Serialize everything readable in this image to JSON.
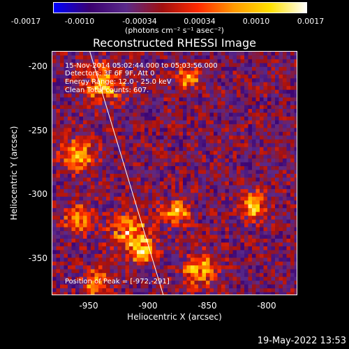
{
  "chart_data": {
    "type": "heatmap",
    "title": "Reconstructed RHESSI Image",
    "xlabel": "Heliocentric X (arcsec)",
    "ylabel": "Heliocentric Y (arcsec)",
    "xlim": [
      -975,
      -785
    ],
    "ylim": [
      -380,
      -190
    ],
    "xticks": [
      "-950",
      "-900",
      "-850",
      "-800"
    ],
    "yticks": [
      "-200",
      "-250",
      "-300",
      "-350"
    ],
    "colorbar": {
      "range": [
        -0.0017,
        0.0017
      ],
      "ticks": [
        "-0.0017",
        "-0.0010",
        "-0.00034",
        "0.00034",
        "0.0010",
        "0.0017"
      ],
      "units": "(photons cm⁻² s⁻¹ asec⁻²)",
      "colors": [
        "#0000ff",
        "#3a0070",
        "#5a2a8a",
        "#a01010",
        "#ff2a00",
        "#ff9a00",
        "#ffe000",
        "#ffffff"
      ]
    },
    "annotations": {
      "time_range": "15-Nov-2014 05:02:44.000 to 05:03:56.000",
      "detectors": "Detectors: 3F 6F 9F, Att 0",
      "energy": "Energy Range: 12.0 - 25.0 keV",
      "method": "Clean   Total counts: 607.",
      "peak": "Position of Peak = [-972,-291]"
    },
    "limb_line": {
      "x": [
        -946,
        -889
      ],
      "y": [
        -190,
        -380
      ]
    },
    "grid": false,
    "legend": "none"
  },
  "timestamp": "19-May-2022 13:53"
}
